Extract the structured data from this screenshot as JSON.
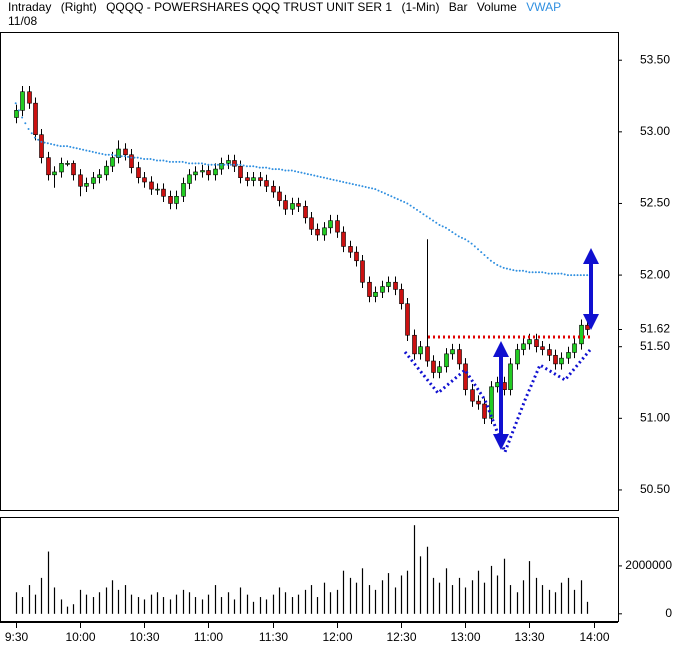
{
  "chart_data": [
    {
      "type": "candlestick",
      "title": "QQQQ - POWERSHARES QQQ TRUST UNIT SER 1",
      "header_items": [
        "Intraday",
        "(Right)",
        "(1-Min)",
        "Bar"
      ],
      "date": "11/08",
      "up_color": "#22cc22",
      "down_color": "#cc1111",
      "x": [
        "9:30",
        "9:33",
        "9:36",
        "9:39",
        "9:42",
        "9:45",
        "9:48",
        "9:51",
        "9:54",
        "9:57",
        "10:00",
        "10:03",
        "10:06",
        "10:09",
        "10:12",
        "10:15",
        "10:18",
        "10:21",
        "10:24",
        "10:27",
        "10:30",
        "10:33",
        "10:36",
        "10:39",
        "10:42",
        "10:45",
        "10:48",
        "10:51",
        "10:54",
        "10:57",
        "11:00",
        "11:03",
        "11:06",
        "11:09",
        "11:12",
        "11:15",
        "11:18",
        "11:21",
        "11:24",
        "11:27",
        "11:30",
        "11:33",
        "11:36",
        "11:39",
        "11:42",
        "11:45",
        "11:48",
        "11:51",
        "11:54",
        "11:57",
        "12:00",
        "12:03",
        "12:06",
        "12:09",
        "12:12",
        "12:15",
        "12:18",
        "12:21",
        "12:24",
        "12:27",
        "12:30",
        "12:33",
        "12:36",
        "12:39",
        "12:42",
        "12:45",
        "12:48",
        "12:51",
        "12:54",
        "12:57",
        "13:00",
        "13:03",
        "13:06",
        "13:09",
        "13:12",
        "13:15",
        "13:18",
        "13:21",
        "13:24",
        "13:27",
        "13:30",
        "13:33",
        "13:36",
        "13:39",
        "13:42",
        "13:45",
        "13:48",
        "13:51",
        "13:54",
        "13:57"
      ],
      "open": [
        53.1,
        53.15,
        53.28,
        53.2,
        52.98,
        52.82,
        52.7,
        52.72,
        52.78,
        52.78,
        52.7,
        52.62,
        52.64,
        52.68,
        52.7,
        52.76,
        52.82,
        52.88,
        52.84,
        52.75,
        52.68,
        52.65,
        52.6,
        52.6,
        52.55,
        52.5,
        52.55,
        52.64,
        52.7,
        52.72,
        52.73,
        52.7,
        52.74,
        52.78,
        52.8,
        52.76,
        52.68,
        52.66,
        52.68,
        52.66,
        52.62,
        52.58,
        52.52,
        52.46,
        52.5,
        52.48,
        52.4,
        52.32,
        52.28,
        52.33,
        52.38,
        52.3,
        52.2,
        52.16,
        52.1,
        51.95,
        51.85,
        51.88,
        51.92,
        51.95,
        51.9,
        51.8,
        51.58,
        51.45,
        51.5,
        51.4,
        51.32,
        51.36,
        51.45,
        51.48,
        51.38,
        51.2,
        51.12,
        51.1,
        51.0,
        51.22,
        51.25,
        51.2,
        51.38,
        51.48,
        51.52,
        51.55,
        51.5,
        51.48,
        51.44,
        51.38,
        51.42,
        51.46,
        51.52,
        51.65
      ],
      "high": [
        53.19,
        53.32,
        53.32,
        53.24,
        53.02,
        52.86,
        52.76,
        52.82,
        52.8,
        52.8,
        52.74,
        52.68,
        52.72,
        52.74,
        52.8,
        52.86,
        52.94,
        52.92,
        52.88,
        52.79,
        52.72,
        52.69,
        52.64,
        52.64,
        52.59,
        52.59,
        52.68,
        52.74,
        52.76,
        52.77,
        52.77,
        52.78,
        52.82,
        52.84,
        52.84,
        52.8,
        52.72,
        52.72,
        52.72,
        52.7,
        52.66,
        52.62,
        52.56,
        52.54,
        52.54,
        52.52,
        52.44,
        52.36,
        52.37,
        52.42,
        52.42,
        52.34,
        52.24,
        52.2,
        52.14,
        51.99,
        51.92,
        51.96,
        51.99,
        51.99,
        51.94,
        51.84,
        51.62,
        51.54,
        52.25,
        51.44,
        51.4,
        51.49,
        51.52,
        51.52,
        51.42,
        51.24,
        51.16,
        51.14,
        51.26,
        51.29,
        51.29,
        51.42,
        51.52,
        51.56,
        51.59,
        51.59,
        51.54,
        51.52,
        51.48,
        51.46,
        51.5,
        51.56,
        51.69,
        51.69
      ],
      "low": [
        53.06,
        53.11,
        53.16,
        52.94,
        52.78,
        52.66,
        52.61,
        52.68,
        52.76,
        52.66,
        52.55,
        52.58,
        52.6,
        52.64,
        52.66,
        52.72,
        52.78,
        52.8,
        52.71,
        52.64,
        52.61,
        52.56,
        52.56,
        52.51,
        52.46,
        52.46,
        52.51,
        52.6,
        52.66,
        52.68,
        52.66,
        52.66,
        52.7,
        52.74,
        52.72,
        52.64,
        52.62,
        52.62,
        52.62,
        52.58,
        52.54,
        52.48,
        52.42,
        52.42,
        52.44,
        52.36,
        52.28,
        52.24,
        52.24,
        52.29,
        52.26,
        52.16,
        52.12,
        52.06,
        51.91,
        51.81,
        51.81,
        51.84,
        51.88,
        51.86,
        51.76,
        51.54,
        51.41,
        51.41,
        51.36,
        51.28,
        51.28,
        51.32,
        51.41,
        51.34,
        51.16,
        51.08,
        51.06,
        50.96,
        50.96,
        51.18,
        51.16,
        51.16,
        51.34,
        51.44,
        51.48,
        51.46,
        51.44,
        51.4,
        51.34,
        51.34,
        51.38,
        51.42,
        51.48,
        51.58
      ],
      "close": [
        53.15,
        53.28,
        53.2,
        52.98,
        52.82,
        52.7,
        52.72,
        52.78,
        52.78,
        52.7,
        52.62,
        52.64,
        52.68,
        52.7,
        52.76,
        52.82,
        52.88,
        52.84,
        52.75,
        52.68,
        52.65,
        52.6,
        52.6,
        52.55,
        52.5,
        52.55,
        52.64,
        52.7,
        52.72,
        52.73,
        52.7,
        52.74,
        52.78,
        52.8,
        52.76,
        52.68,
        52.66,
        52.68,
        52.66,
        52.62,
        52.58,
        52.52,
        52.46,
        52.5,
        52.48,
        52.4,
        52.32,
        52.28,
        52.33,
        52.38,
        52.3,
        52.2,
        52.16,
        52.1,
        51.95,
        51.85,
        51.88,
        51.92,
        51.95,
        51.9,
        51.8,
        51.58,
        51.45,
        51.5,
        51.4,
        51.32,
        51.36,
        51.45,
        51.48,
        51.38,
        51.2,
        51.12,
        51.1,
        51.0,
        51.22,
        51.25,
        51.2,
        51.38,
        51.48,
        51.52,
        51.55,
        51.5,
        51.48,
        51.44,
        51.38,
        51.42,
        51.46,
        51.52,
        51.65,
        51.62
      ],
      "series": [
        {
          "name": "VWAP",
          "color": "#2f8fe0",
          "values": [
            53.2,
            53.1,
            53.02,
            52.96,
            52.93,
            52.92,
            52.91,
            52.9,
            52.9,
            52.89,
            52.88,
            52.87,
            52.86,
            52.85,
            52.84,
            52.84,
            52.83,
            52.83,
            52.82,
            52.82,
            52.81,
            52.81,
            52.8,
            52.8,
            52.79,
            52.79,
            52.79,
            52.78,
            52.78,
            52.78,
            52.77,
            52.77,
            52.77,
            52.77,
            52.77,
            52.77,
            52.76,
            52.76,
            52.75,
            52.75,
            52.74,
            52.74,
            52.73,
            52.73,
            52.72,
            52.71,
            52.7,
            52.69,
            52.68,
            52.67,
            52.66,
            52.65,
            52.64,
            52.63,
            52.62,
            52.61,
            52.6,
            52.58,
            52.56,
            52.54,
            52.52,
            52.5,
            52.47,
            52.44,
            52.41,
            52.38,
            52.35,
            52.33,
            52.3,
            52.27,
            52.25,
            52.22,
            52.18,
            52.14,
            52.1,
            52.07,
            52.05,
            52.04,
            52.03,
            52.03,
            52.02,
            52.02,
            52.02,
            52.01,
            52.01,
            52.01,
            52.0,
            52.0,
            52.0,
            52.0
          ]
        }
      ],
      "xlim": [
        "9:25",
        "14:10"
      ],
      "ylim": [
        50.36,
        53.69
      ],
      "yticks": [
        {
          "value": 50.5,
          "label": "50.50"
        },
        {
          "value": 51.0,
          "label": "51.00"
        },
        {
          "value": 51.5,
          "label": "51.50"
        },
        51.62,
        {
          "value": 52.0,
          "label": "52.00"
        },
        {
          "value": 52.5,
          "label": "52.50"
        },
        {
          "value": 53.0,
          "label": "53.00"
        },
        {
          "value": 53.5,
          "label": "53.50"
        }
      ]
    },
    {
      "type": "bar",
      "name": "Volume",
      "color": "#000000",
      "values": [
        900000,
        700000,
        1200000,
        800000,
        1500000,
        2600000,
        1100000,
        600000,
        300000,
        400000,
        1000000,
        800000,
        700000,
        900000,
        1100000,
        1400000,
        1000000,
        1200000,
        800000,
        700000,
        600000,
        800000,
        900000,
        700000,
        600000,
        800000,
        1000000,
        900000,
        700000,
        600000,
        800000,
        1200000,
        700000,
        900000,
        600000,
        1100000,
        800000,
        500000,
        700000,
        600000,
        800000,
        1100000,
        900000,
        700000,
        800000,
        1000000,
        1200000,
        700000,
        1300000,
        900000,
        1000000,
        1800000,
        1500000,
        1300000,
        1900000,
        1200000,
        1000000,
        1400000,
        1700000,
        1100000,
        1600000,
        1800000,
        3700000,
        2400000,
        2800000,
        1500000,
        1300000,
        1900000,
        1200000,
        1500000,
        1100000,
        1400000,
        1800000,
        1300000,
        2000000,
        1600000,
        2300000,
        1200000,
        900000,
        1400000,
        2200000,
        1500000,
        1200000,
        1000000,
        900000,
        1300000,
        1500000,
        1000000,
        1400000,
        500000
      ],
      "ylim": [
        -300000,
        4000000
      ],
      "yticks": [
        0,
        2000000
      ],
      "xlim": [
        "9:25",
        "14:10"
      ],
      "xticks": [
        "9:30",
        "10:00",
        "10:30",
        "11:00",
        "11:30",
        "12:00",
        "12:30",
        "13:00",
        "13:30",
        "14:00"
      ]
    }
  ]
}
